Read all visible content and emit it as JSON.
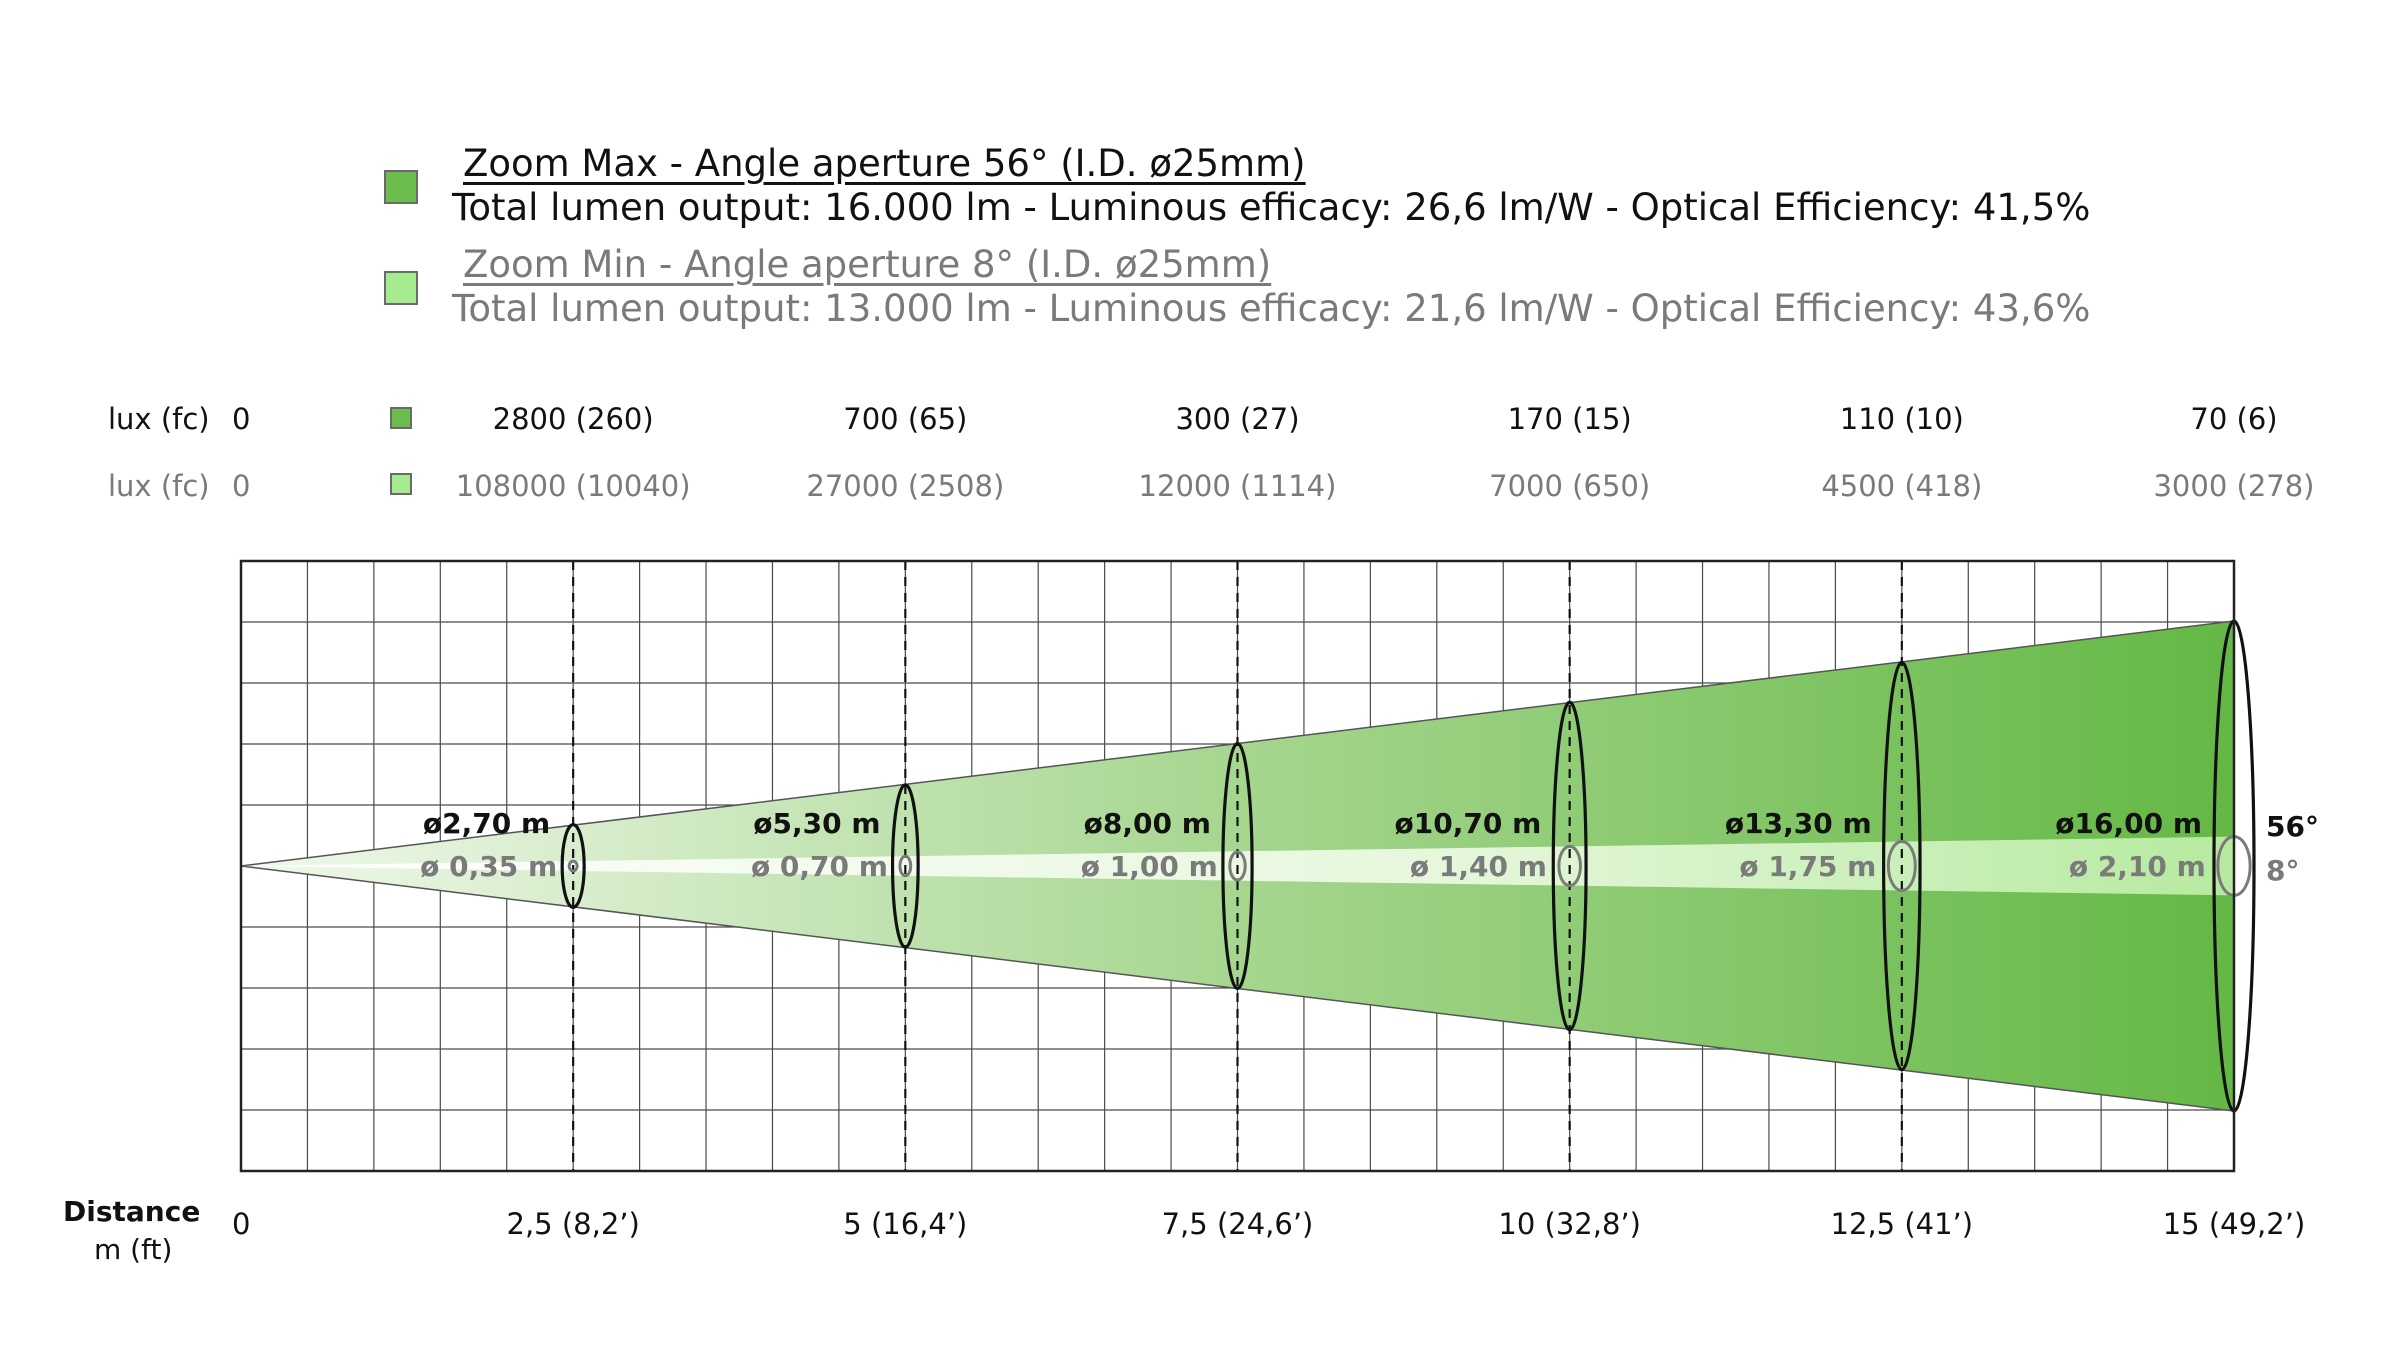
{
  "legend": {
    "max": {
      "title": "Zoom Max - Angle aperture 56° (I.D. ø25mm)",
      "info": "Total lumen output: 16.000 lm - Luminous efficacy: 26,6 lm/W - Optical Efficiency: 41,5%",
      "color": "#6dbd4e"
    },
    "min": {
      "title": "Zoom Min - Angle aperture 8° (I.D. ø25mm)",
      "info": "Total lumen output: 13.000 lm - Luminous efficacy: 21,6 lm/W - Optical Efficiency: 43,6%",
      "color": "#a6eb8f"
    }
  },
  "lux_rows": {
    "max": {
      "label": "lux (fc)",
      "zero": "0",
      "values": [
        "2800 (260)",
        "700 (65)",
        "300 (27)",
        "170 (15)",
        "110 (10)",
        "70 (6)"
      ]
    },
    "min": {
      "label": "lux (fc)",
      "zero": "0",
      "values": [
        "108000 (10040)",
        "27000 (2508)",
        "12000 (1114)",
        "7000 (650)",
        "4500 (418)",
        "3000 (278)"
      ]
    }
  },
  "distance_axis": {
    "title": "Distance",
    "unit": "m (ft)",
    "zero": "0",
    "ticks": [
      "2,5  (8,2’)",
      "5  (16,4’)",
      "7,5 (24,6’)",
      "10  (32,8’)",
      "12,5 (41’)",
      "15 (49,2’)"
    ]
  },
  "beams": {
    "max": {
      "angle_label": "56°",
      "diameters": [
        "ø2,70 m",
        "ø5,30 m",
        "ø8,00 m",
        "ø10,70 m",
        "ø13,30 m",
        "ø16,00 m"
      ]
    },
    "min": {
      "angle_label": "8°",
      "diameters": [
        "ø 0,35 m",
        "ø 0,70 m",
        "ø 1,00 m",
        "ø 1,40 m",
        "ø 1,75 m",
        "ø 2,10 m"
      ]
    }
  },
  "chart_data": {
    "type": "beam-diagram",
    "x_unit": "m",
    "distances_m": [
      2.5,
      5,
      7.5,
      10,
      12.5,
      15
    ],
    "distances_ft": [
      8.2,
      16.4,
      24.6,
      32.8,
      41,
      49.2
    ],
    "series": [
      {
        "name": "Zoom Max",
        "beam_angle_deg": 56,
        "diameter_m": [
          2.7,
          5.3,
          8.0,
          10.7,
          13.3,
          16.0
        ],
        "lux": [
          2800,
          700,
          300,
          170,
          110,
          70
        ],
        "fc": [
          260,
          65,
          27,
          15,
          10,
          6
        ]
      },
      {
        "name": "Zoom Min",
        "beam_angle_deg": 8,
        "diameter_m": [
          0.35,
          0.7,
          1.0,
          1.4,
          1.75,
          2.1
        ],
        "lux": [
          108000,
          27000,
          12000,
          7000,
          4500,
          3000
        ],
        "fc": [
          10040,
          2508,
          1114,
          650,
          418,
          278
        ]
      }
    ],
    "xlim": [
      0,
      15
    ],
    "grid": true
  }
}
